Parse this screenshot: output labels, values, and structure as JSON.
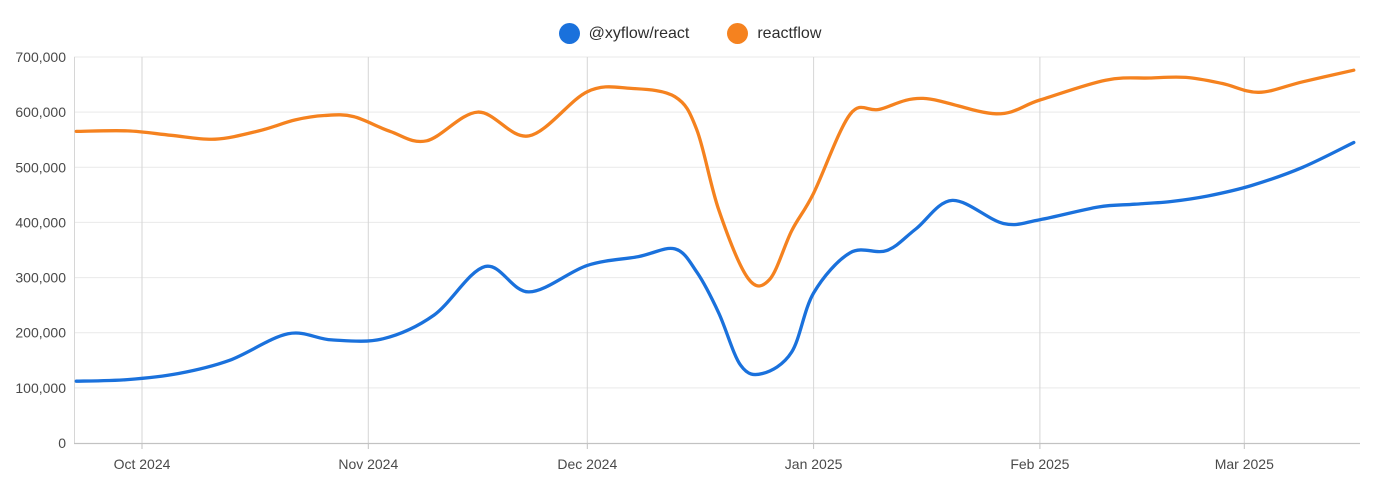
{
  "legend": {
    "items": [
      {
        "label": "@xyflow/react",
        "color": "#1a71dc"
      },
      {
        "label": "reactflow",
        "color": "#f5821f"
      }
    ]
  },
  "colors": {
    "background": "#ffffff",
    "grid_horizontal": "#e9e9e9",
    "grid_vertical": "#d6d6d6",
    "axis_line": "#c2c2c2",
    "tick_mark": "#c2c2c2",
    "tick_text": "#4a4a4a",
    "legend_text": "#2e2e2e",
    "series_blue": "#1a71dc",
    "series_orange": "#f5821f"
  },
  "chart_data": {
    "type": "line",
    "title": "",
    "xlabel": "",
    "ylabel": "",
    "grid": true,
    "legend_position": "top",
    "x_axis": {
      "start_date": "2024-09-21",
      "end_date": "2025-03-16",
      "ticks": [
        {
          "date": "2024-10-01",
          "label": "Oct 2024"
        },
        {
          "date": "2024-11-01",
          "label": "Nov 2024"
        },
        {
          "date": "2024-12-01",
          "label": "Dec 2024"
        },
        {
          "date": "2025-01-01",
          "label": "Jan 2025"
        },
        {
          "date": "2025-02-01",
          "label": "Feb 2025"
        },
        {
          "date": "2025-03-01",
          "label": "Mar 2025"
        }
      ]
    },
    "y_axis": {
      "min": 0,
      "max": 700000,
      "tick_interval": 100000,
      "tick_labels": [
        "0",
        "100,000",
        "200,000",
        "300,000",
        "400,000",
        "500,000",
        "600,000",
        "700,000"
      ]
    },
    "series": [
      {
        "name": "@xyflow/react",
        "color": "#1a71dc",
        "points": [
          [
            "2024-09-22",
            112000
          ],
          [
            "2024-09-29",
            115000
          ],
          [
            "2024-10-06",
            126000
          ],
          [
            "2024-10-13",
            150000
          ],
          [
            "2024-10-21",
            198000
          ],
          [
            "2024-10-27",
            187000
          ],
          [
            "2024-11-03",
            189000
          ],
          [
            "2024-11-10",
            232000
          ],
          [
            "2024-11-17",
            320000
          ],
          [
            "2024-11-23",
            274000
          ],
          [
            "2024-12-01",
            322000
          ],
          [
            "2024-12-08",
            338000
          ],
          [
            "2024-12-13",
            352000
          ],
          [
            "2024-12-16",
            310000
          ],
          [
            "2024-12-19",
            236000
          ],
          [
            "2024-12-22",
            141000
          ],
          [
            "2024-12-25",
            126000
          ],
          [
            "2024-12-29",
            165000
          ],
          [
            "2025-01-01",
            272000
          ],
          [
            "2025-01-06",
            345000
          ],
          [
            "2025-01-11",
            349000
          ],
          [
            "2025-01-15",
            388000
          ],
          [
            "2025-01-20",
            440000
          ],
          [
            "2025-01-27",
            398000
          ],
          [
            "2025-02-01",
            405000
          ],
          [
            "2025-02-09",
            428000
          ],
          [
            "2025-02-14",
            433000
          ],
          [
            "2025-02-19",
            438000
          ],
          [
            "2025-02-24",
            448000
          ],
          [
            "2025-03-02",
            467000
          ],
          [
            "2025-03-09",
            500000
          ],
          [
            "2025-03-16",
            545000
          ]
        ]
      },
      {
        "name": "reactflow",
        "color": "#f5821f",
        "points": [
          [
            "2024-09-22",
            565000
          ],
          [
            "2024-09-29",
            566000
          ],
          [
            "2024-10-05",
            558000
          ],
          [
            "2024-10-11",
            551000
          ],
          [
            "2024-10-17",
            566000
          ],
          [
            "2024-10-22",
            586000
          ],
          [
            "2024-10-26",
            594000
          ],
          [
            "2024-10-30",
            592000
          ],
          [
            "2024-11-04",
            565000
          ],
          [
            "2024-11-09",
            548000
          ],
          [
            "2024-11-16",
            600000
          ],
          [
            "2024-11-23",
            557000
          ],
          [
            "2024-12-01",
            637000
          ],
          [
            "2024-12-07",
            643000
          ],
          [
            "2024-12-13",
            628000
          ],
          [
            "2024-12-16",
            568000
          ],
          [
            "2024-12-19",
            423000
          ],
          [
            "2024-12-23",
            299000
          ],
          [
            "2024-12-26",
            297000
          ],
          [
            "2024-12-29",
            385000
          ],
          [
            "2025-01-01",
            453000
          ],
          [
            "2025-01-06",
            596000
          ],
          [
            "2025-01-10",
            605000
          ],
          [
            "2025-01-16",
            625000
          ],
          [
            "2025-01-26",
            597000
          ],
          [
            "2025-02-01",
            622000
          ],
          [
            "2025-02-10",
            658000
          ],
          [
            "2025-02-16",
            662000
          ],
          [
            "2025-02-21",
            663000
          ],
          [
            "2025-02-26",
            652000
          ],
          [
            "2025-03-03",
            636000
          ],
          [
            "2025-03-09",
            655000
          ],
          [
            "2025-03-16",
            676000
          ]
        ]
      }
    ]
  }
}
